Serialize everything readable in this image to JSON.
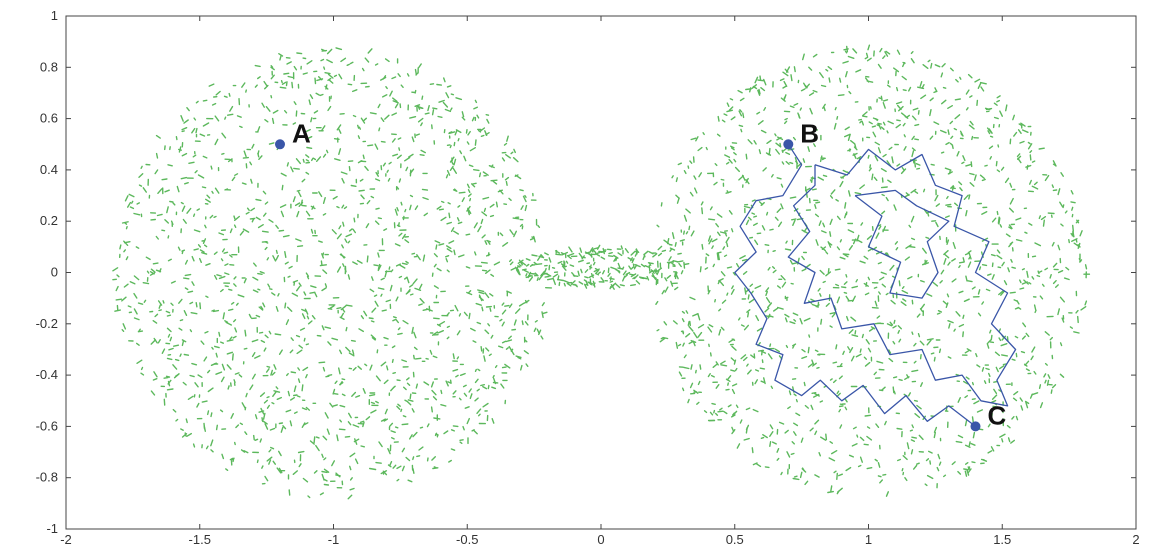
{
  "chart_data": {
    "type": "scatter",
    "title": "",
    "xlabel": "",
    "ylabel": "",
    "xlim": [
      -2,
      2
    ],
    "ylim": [
      -1,
      1
    ],
    "grid": false,
    "x_ticks": [
      {
        "value": -2,
        "label": "-2"
      },
      {
        "value": -1.5,
        "label": "-1.5"
      },
      {
        "value": -1,
        "label": "-1"
      },
      {
        "value": -0.5,
        "label": "-0.5"
      },
      {
        "value": 0,
        "label": "0"
      },
      {
        "value": 0.5,
        "label": "0.5"
      },
      {
        "value": 1,
        "label": "1"
      },
      {
        "value": 1.5,
        "label": "1.5"
      },
      {
        "value": 2,
        "label": "2"
      }
    ],
    "y_ticks": [
      {
        "value": 1,
        "label": "1"
      },
      {
        "value": 0.8,
        "label": "0.8"
      },
      {
        "value": 0.6,
        "label": "0.6"
      },
      {
        "value": 0.4,
        "label": "0.4"
      },
      {
        "value": 0.2,
        "label": "0.2"
      },
      {
        "value": 0,
        "label": "0"
      },
      {
        "value": -0.2,
        "label": "-0.2"
      },
      {
        "value": -0.4,
        "label": "-0.4"
      },
      {
        "value": -0.6,
        "label": "-0.6"
      },
      {
        "value": -0.8,
        "label": "-0.8"
      },
      {
        "value": -1,
        "label": "-1"
      }
    ],
    "clusters": [
      {
        "center": [
          -1.0,
          0.0
        ],
        "radius_x": 0.82,
        "radius_y": 0.88
      },
      {
        "center": [
          1.0,
          0.0
        ],
        "radius_x": 0.82,
        "radius_y": 0.88
      },
      {
        "center": [
          0.0,
          0.02
        ],
        "radius_x": 0.32,
        "radius_y": 0.08
      }
    ],
    "scatter_color": "#5cb85c",
    "path_color": "#3a56a8",
    "labeled_points": [
      {
        "label": "A",
        "x": -1.2,
        "y": 0.5
      },
      {
        "label": "B",
        "x": 0.7,
        "y": 0.5
      },
      {
        "label": "C",
        "x": 1.4,
        "y": -0.6
      }
    ],
    "path_B_to_C": [
      [
        0.7,
        0.5
      ],
      [
        0.75,
        0.42
      ],
      [
        0.68,
        0.3
      ],
      [
        0.58,
        0.28
      ],
      [
        0.52,
        0.18
      ],
      [
        0.58,
        0.08
      ],
      [
        0.5,
        0.0
      ],
      [
        0.56,
        -0.08
      ],
      [
        0.62,
        -0.18
      ],
      [
        0.58,
        -0.28
      ],
      [
        0.68,
        -0.32
      ],
      [
        0.65,
        -0.42
      ],
      [
        0.75,
        -0.48
      ],
      [
        0.82,
        -0.42
      ],
      [
        0.9,
        -0.5
      ],
      [
        0.98,
        -0.44
      ],
      [
        1.06,
        -0.55
      ],
      [
        1.14,
        -0.48
      ],
      [
        1.22,
        -0.58
      ],
      [
        1.3,
        -0.52
      ],
      [
        1.4,
        -0.6
      ]
    ],
    "loop_path": [
      [
        0.8,
        0.42
      ],
      [
        0.92,
        0.38
      ],
      [
        1.0,
        0.48
      ],
      [
        1.1,
        0.4
      ],
      [
        1.2,
        0.46
      ],
      [
        1.25,
        0.34
      ],
      [
        1.35,
        0.3
      ],
      [
        1.32,
        0.18
      ],
      [
        1.45,
        0.12
      ],
      [
        1.4,
        0.0
      ],
      [
        1.52,
        -0.08
      ],
      [
        1.46,
        -0.2
      ],
      [
        1.55,
        -0.3
      ],
      [
        1.48,
        -0.42
      ],
      [
        1.52,
        -0.52
      ],
      [
        1.42,
        -0.5
      ],
      [
        1.35,
        -0.4
      ],
      [
        1.25,
        -0.42
      ],
      [
        1.2,
        -0.3
      ],
      [
        1.08,
        -0.32
      ],
      [
        1.02,
        -0.2
      ],
      [
        0.9,
        -0.22
      ],
      [
        0.86,
        -0.1
      ],
      [
        0.76,
        -0.12
      ],
      [
        0.8,
        0.0
      ],
      [
        0.7,
        0.06
      ],
      [
        0.78,
        0.16
      ],
      [
        0.72,
        0.26
      ],
      [
        0.8,
        0.34
      ],
      [
        0.8,
        0.42
      ]
    ],
    "inner_path": [
      [
        0.95,
        0.3
      ],
      [
        1.05,
        0.22
      ],
      [
        1.0,
        0.1
      ],
      [
        1.12,
        0.04
      ],
      [
        1.08,
        -0.08
      ],
      [
        1.2,
        -0.1
      ],
      [
        1.26,
        0.0
      ],
      [
        1.22,
        0.12
      ],
      [
        1.3,
        0.2
      ],
      [
        1.18,
        0.26
      ],
      [
        1.1,
        0.32
      ],
      [
        0.95,
        0.3
      ]
    ]
  }
}
